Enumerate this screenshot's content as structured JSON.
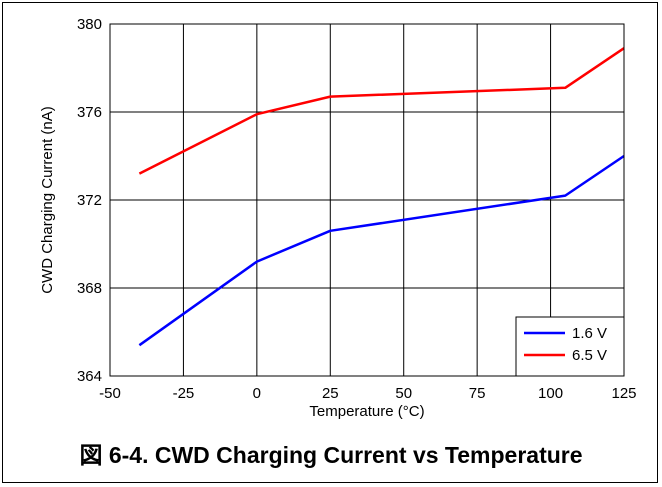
{
  "caption": "図 6-4. CWD Charging Current vs Temperature",
  "chart_data": {
    "type": "line",
    "xlabel": "Temperature (°C)",
    "ylabel": "CWD Charging Current (nA)",
    "xlim": [
      -50,
      125
    ],
    "ylim": [
      364,
      380
    ],
    "xticks": [
      -50,
      -25,
      0,
      25,
      50,
      75,
      100,
      125
    ],
    "yticks": [
      364,
      368,
      372,
      376,
      380
    ],
    "grid": true,
    "legend_position": "bottom-right",
    "series": [
      {
        "name": "1.6 V",
        "color": "#0000ff",
        "x": [
          -40,
          0,
          25,
          105,
          125
        ],
        "y": [
          365.4,
          369.2,
          370.6,
          372.2,
          374.0
        ]
      },
      {
        "name": "6.5 V",
        "color": "#ff0000",
        "x": [
          -40,
          0,
          25,
          105,
          125
        ],
        "y": [
          373.2,
          375.9,
          376.7,
          377.1,
          378.9
        ]
      }
    ]
  }
}
